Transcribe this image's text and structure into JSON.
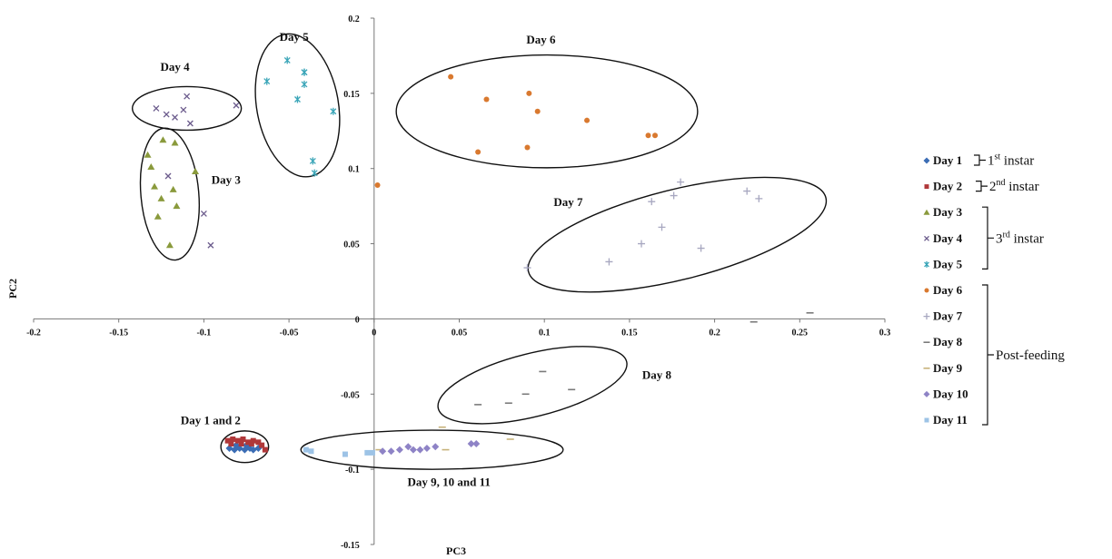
{
  "chart_data": {
    "type": "scatter",
    "title": "",
    "xlabel": "PC3",
    "ylabel": "PC2",
    "xlim": [
      -0.2,
      0.3
    ],
    "ylim": [
      -0.15,
      0.2
    ],
    "x_ticks": [
      -0.2,
      -0.15,
      -0.1,
      -0.05,
      0,
      0.05,
      0.1,
      0.15,
      0.2,
      0.25,
      0.3
    ],
    "x_tick_labels": [
      "-0.2",
      "-0.15",
      "-0.1",
      "-0.05",
      "0",
      "0.05",
      "0.1",
      "0.15",
      "0.2",
      "0.25",
      "0.3"
    ],
    "y_ticks": [
      -0.15,
      -0.1,
      -0.05,
      0,
      0.05,
      0.1,
      0.15,
      0.2
    ],
    "y_tick_labels": [
      "-0.15",
      "-0.1",
      "-0.05",
      "0",
      "0.05",
      "0.1",
      "0.15",
      "0.2"
    ],
    "grid": false,
    "legend_position": "right",
    "series": [
      {
        "name": "Day 1",
        "color": "#3b6db5",
        "marker": "diamond",
        "points": [
          [
            -0.085,
            -0.086
          ],
          [
            -0.082,
            -0.087
          ],
          [
            -0.079,
            -0.086
          ],
          [
            -0.076,
            -0.087
          ],
          [
            -0.073,
            -0.086
          ],
          [
            -0.071,
            -0.087
          ],
          [
            -0.068,
            -0.086
          ],
          [
            -0.081,
            -0.084
          ],
          [
            -0.075,
            -0.084
          ]
        ]
      },
      {
        "name": "Day 2",
        "color": "#b0383a",
        "marker": "square",
        "points": [
          [
            -0.086,
            -0.081
          ],
          [
            -0.083,
            -0.08
          ],
          [
            -0.08,
            -0.081
          ],
          [
            -0.077,
            -0.08
          ],
          [
            -0.074,
            -0.082
          ],
          [
            -0.071,
            -0.081
          ],
          [
            -0.068,
            -0.082
          ],
          [
            -0.084,
            -0.083
          ],
          [
            -0.078,
            -0.083
          ],
          [
            -0.072,
            -0.083
          ],
          [
            -0.066,
            -0.084
          ],
          [
            -0.064,
            -0.087
          ]
        ]
      },
      {
        "name": "Day 3",
        "color": "#8a9a3c",
        "marker": "triangle",
        "points": [
          [
            -0.133,
            0.109
          ],
          [
            -0.124,
            0.119
          ],
          [
            -0.131,
            0.101
          ],
          [
            -0.117,
            0.117
          ],
          [
            -0.105,
            0.098
          ],
          [
            -0.129,
            0.088
          ],
          [
            -0.118,
            0.086
          ],
          [
            -0.125,
            0.08
          ],
          [
            -0.116,
            0.075
          ],
          [
            -0.127,
            0.068
          ],
          [
            -0.12,
            0.049
          ]
        ]
      },
      {
        "name": "Day 4",
        "color": "#6b5b8c",
        "marker": "x",
        "points": [
          [
            -0.128,
            0.14
          ],
          [
            -0.122,
            0.136
          ],
          [
            -0.117,
            0.134
          ],
          [
            -0.112,
            0.139
          ],
          [
            -0.11,
            0.148
          ],
          [
            -0.108,
            0.13
          ],
          [
            -0.081,
            0.142
          ],
          [
            -0.121,
            0.095
          ],
          [
            -0.1,
            0.07
          ],
          [
            -0.096,
            0.049
          ]
        ]
      },
      {
        "name": "Day 5",
        "color": "#3aa5b8",
        "marker": "star",
        "points": [
          [
            -0.063,
            0.158
          ],
          [
            -0.051,
            0.172
          ],
          [
            -0.045,
            0.146
          ],
          [
            -0.041,
            0.164
          ],
          [
            -0.041,
            0.156
          ],
          [
            -0.041,
            0.164
          ],
          [
            -0.024,
            0.138
          ],
          [
            -0.036,
            0.105
          ],
          [
            -0.035,
            0.097
          ]
        ]
      },
      {
        "name": "Day 6",
        "color": "#d9792f",
        "marker": "circle",
        "points": [
          [
            0.002,
            0.089
          ],
          [
            0.045,
            0.161
          ],
          [
            0.066,
            0.146
          ],
          [
            0.091,
            0.15
          ],
          [
            0.096,
            0.138
          ],
          [
            0.061,
            0.111
          ],
          [
            0.09,
            0.114
          ],
          [
            0.125,
            0.132
          ],
          [
            0.161,
            0.122
          ],
          [
            0.165,
            0.122
          ]
        ]
      },
      {
        "name": "Day 7",
        "color": "#a7a7c0",
        "marker": "plus",
        "points": [
          [
            0.09,
            0.034
          ],
          [
            0.138,
            0.038
          ],
          [
            0.157,
            0.05
          ],
          [
            0.163,
            0.078
          ],
          [
            0.169,
            0.061
          ],
          [
            0.176,
            0.082
          ],
          [
            0.18,
            0.091
          ],
          [
            0.192,
            0.047
          ],
          [
            0.219,
            0.085
          ],
          [
            0.226,
            0.08
          ]
        ]
      },
      {
        "name": "Day 8",
        "color": "#7a7a7a",
        "marker": "dash",
        "points": [
          [
            0.061,
            -0.057
          ],
          [
            0.079,
            -0.056
          ],
          [
            0.089,
            -0.05
          ],
          [
            0.099,
            -0.035
          ],
          [
            0.116,
            -0.047
          ],
          [
            0.223,
            -0.002
          ],
          [
            0.256,
            0.004
          ]
        ]
      },
      {
        "name": "Day 9",
        "color": "#c7b27a",
        "marker": "dash",
        "points": [
          [
            0.003,
            -0.087
          ],
          [
            0.042,
            -0.087
          ],
          [
            0.04,
            -0.072
          ],
          [
            0.08,
            -0.08
          ]
        ]
      },
      {
        "name": "Day 10",
        "color": "#8e83c6",
        "marker": "diamond",
        "points": [
          [
            0.005,
            -0.088
          ],
          [
            0.01,
            -0.088
          ],
          [
            0.015,
            -0.087
          ],
          [
            0.02,
            -0.085
          ],
          [
            0.023,
            -0.087
          ],
          [
            0.027,
            -0.087
          ],
          [
            0.031,
            -0.086
          ],
          [
            0.036,
            -0.085
          ],
          [
            0.057,
            -0.083
          ],
          [
            0.06,
            -0.083
          ]
        ]
      },
      {
        "name": "Day 11",
        "color": "#9dc3e6",
        "marker": "square",
        "points": [
          [
            -0.04,
            -0.087
          ],
          [
            -0.037,
            -0.088
          ],
          [
            -0.017,
            -0.09
          ],
          [
            -0.004,
            -0.089
          ],
          [
            -0.001,
            -0.089
          ]
        ]
      }
    ],
    "clusters": [
      {
        "label": "Day 4",
        "cx": -0.11,
        "cy": 0.14,
        "rx": 0.032,
        "ry": 0.0145,
        "rot": 0,
        "label_x": -0.117,
        "label_y": 0.165
      },
      {
        "label": "Day 5",
        "cx": -0.045,
        "cy": 0.142,
        "rx": 0.024,
        "ry": 0.048,
        "rot": -10,
        "label_x": -0.047,
        "label_y": 0.185
      },
      {
        "label": "Day 3",
        "cx": -0.12,
        "cy": 0.083,
        "rx": 0.017,
        "ry": 0.044,
        "rot": -5,
        "label_x": -0.087,
        "label_y": 0.09
      },
      {
        "label": "Day 6",
        "cx": 0.1015,
        "cy": 0.138,
        "rx": 0.0885,
        "ry": 0.0375,
        "rot": 0,
        "label_x": 0.098,
        "label_y": 0.183
      },
      {
        "label": "Day 7",
        "cx": 0.178,
        "cy": 0.056,
        "rx": 0.09,
        "ry": 0.03,
        "rot": -14,
        "label_x": 0.114,
        "label_y": 0.075
      },
      {
        "label": "Day 8",
        "cx": 0.093,
        "cy": -0.044,
        "rx": 0.057,
        "ry": 0.021,
        "rot": -14,
        "label_x": 0.166,
        "label_y": -0.04
      },
      {
        "label": "Day 1 and 2",
        "cx": -0.076,
        "cy": -0.085,
        "rx": 0.014,
        "ry": 0.0105,
        "rot": 0,
        "label_x": -0.096,
        "label_y": -0.07
      },
      {
        "label": "Day 9, 10 and 11",
        "cx": 0.034,
        "cy": -0.087,
        "rx": 0.077,
        "ry": 0.013,
        "rot": 0,
        "label_x": 0.044,
        "label_y": -0.111
      }
    ],
    "legend": [
      {
        "label": "Day 1",
        "series": 0
      },
      {
        "label": "Day 2",
        "series": 1
      },
      {
        "label": "Day 3",
        "series": 2
      },
      {
        "label": "Day 4",
        "series": 3
      },
      {
        "label": "Day 5",
        "series": 4
      },
      {
        "label": "Day 6",
        "series": 5
      },
      {
        "label": "Day 7",
        "series": 6
      },
      {
        "label": "Day 8",
        "series": 7
      },
      {
        "label": "Day 9",
        "series": 8
      },
      {
        "label": "Day 10",
        "series": 9
      },
      {
        "label": "Day 11",
        "series": 10
      }
    ],
    "stage_groups": [
      {
        "base": "1",
        "sup": "st",
        "rest": " instar",
        "from": 0,
        "to": 0
      },
      {
        "base": "2",
        "sup": "nd",
        "rest": " instar",
        "from": 1,
        "to": 1
      },
      {
        "base": "3",
        "sup": "rd",
        "rest": " instar",
        "from": 2,
        "to": 4
      },
      {
        "base": "Post-feeding",
        "sup": "",
        "rest": "",
        "from": 5,
        "to": 10
      }
    ]
  }
}
